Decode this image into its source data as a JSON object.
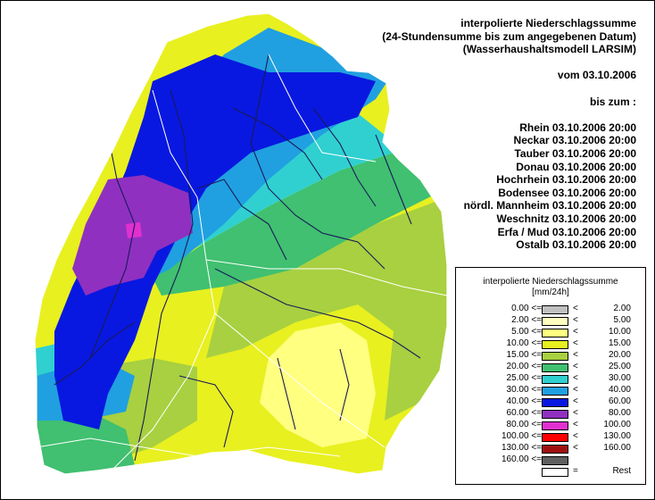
{
  "header": {
    "title_lines": [
      "interpolierte Niederschlagssumme",
      "(24-Stundensumme bis zum angegebenen Datum)",
      "(Wasserhaushaltsmodell LARSIM)"
    ],
    "date_line": "vom 03.10.2006",
    "until_label": "bis zum :",
    "basins": [
      "Rhein 03.10.2006 20:00",
      "Neckar 03.10.2006 20:00",
      "Tauber 03.10.2006 20:00",
      "Donau 03.10.2006 20:00",
      "Hochrhein 03.10.2006 20:00",
      "Bodensee 03.10.2006 20:00",
      "nördl. Mannheim 03.10.2006 20:00",
      "Weschnitz 03.10.2006 20:00",
      "Erfa / Mud 03.10.2006 20:00",
      "Ostalb 03.10.2006 20:00"
    ]
  },
  "legend": {
    "title_line1": "interpolierte Niederschlagssumme",
    "title_line2": "[mm/24h]",
    "classes": [
      {
        "lo": "0.00 <=",
        "lt": "<",
        "hi": "2.00",
        "color": "#c0c0c0"
      },
      {
        "lo": "2.00 <=",
        "lt": "<",
        "hi": "5.00",
        "color": "#ffffc0"
      },
      {
        "lo": "5.00 <=",
        "lt": "<",
        "hi": "10.00",
        "color": "#ffff80"
      },
      {
        "lo": "10.00 <=",
        "lt": "<",
        "hi": "15.00",
        "color": "#e8f020"
      },
      {
        "lo": "15.00 <=",
        "lt": "<",
        "hi": "20.00",
        "color": "#a8d040"
      },
      {
        "lo": "20.00 <=",
        "lt": "<",
        "hi": "25.00",
        "color": "#40c070"
      },
      {
        "lo": "25.00 <=",
        "lt": "<",
        "hi": "30.00",
        "color": "#30d0d0"
      },
      {
        "lo": "30.00 <=",
        "lt": "<",
        "hi": "40.00",
        "color": "#20a0e0"
      },
      {
        "lo": "40.00 <=",
        "lt": "<",
        "hi": "60.00",
        "color": "#0818e0"
      },
      {
        "lo": "60.00 <=",
        "lt": "<",
        "hi": "80.00",
        "color": "#9030c0"
      },
      {
        "lo": "80.00 <=",
        "lt": "<",
        "hi": "100.00",
        "color": "#e030d0"
      },
      {
        "lo": "100.00 <=",
        "lt": "<",
        "hi": "130.00",
        "color": "#ff0000"
      },
      {
        "lo": "130.00 <=",
        "lt": "<",
        "hi": "160.00",
        "color": "#a01010"
      },
      {
        "lo": "160.00 <=",
        "lt": "",
        "hi": "",
        "color": "#606060"
      },
      {
        "lo": "",
        "lt": "=",
        "hi": "Rest",
        "color": "#ffffff"
      }
    ]
  },
  "map_colors": {
    "pale": "#ffff80",
    "yellow": "#e8f020",
    "lime": "#a8d040",
    "green": "#40c070",
    "cyan": "#30d0d0",
    "sky": "#20a0e0",
    "blue": "#0818e0",
    "purple": "#9030c0",
    "magenta": "#e030d0",
    "river": "#1a1a5a",
    "border": "#ffffff"
  }
}
